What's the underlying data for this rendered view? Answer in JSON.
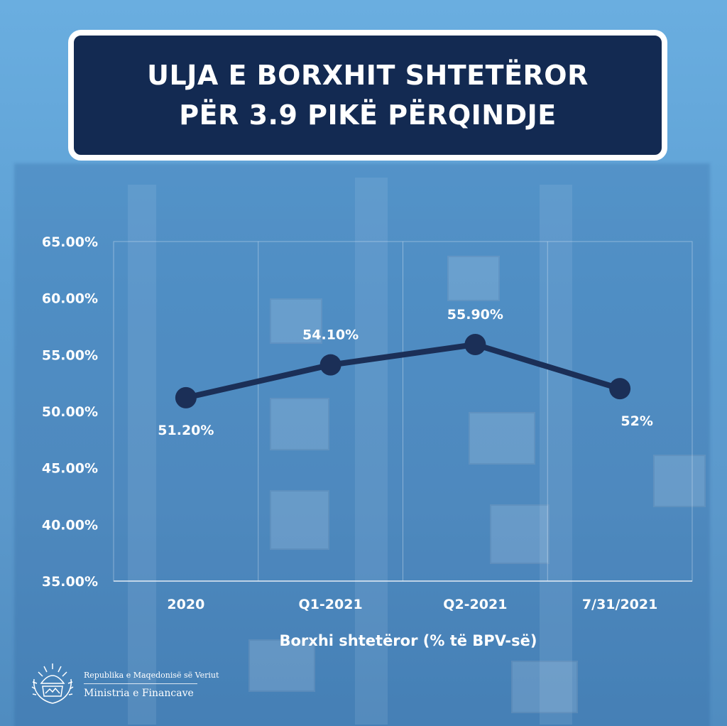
{
  "title": "ULJA E BORXHIT SHTETËROR PËR 3.9 PIKË PËRQINDJE",
  "chart_data": {
    "type": "line",
    "categories": [
      "2020",
      "Q1-2021",
      "Q2-2021",
      "7/31/2021"
    ],
    "series": [
      {
        "values": [
          51.2,
          54.1,
          55.9,
          52
        ],
        "labels": [
          "51.20%",
          "54.10%",
          "55.90%",
          "52%"
        ]
      }
    ],
    "y_ticks": [
      "35.00%",
      "40.00%",
      "45.00%",
      "50.00%",
      "55.00%",
      "60.00%",
      "65.00%"
    ],
    "ylim": [
      35,
      65
    ],
    "xlabel": "Borxhi shtetëror (% të BPV-së)",
    "ylabel": "",
    "grid": true,
    "line_color": "#1b2f57"
  },
  "footer": {
    "org_line1": "Republika e Maqedonisë së Veriut",
    "org_line2": "Ministria e Financave"
  }
}
